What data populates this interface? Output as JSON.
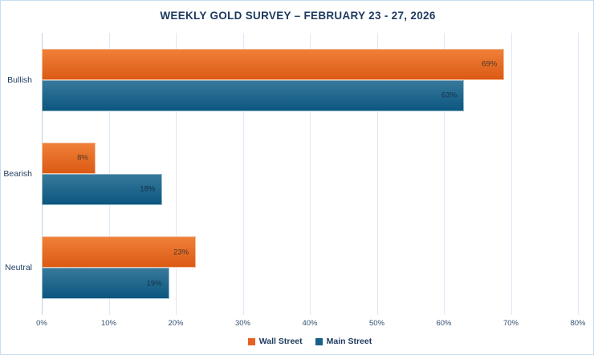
{
  "title": "WEEKLY GOLD SURVEY – FEBRUARY 23 - 27, 2026",
  "chart_data": {
    "type": "bar",
    "orientation": "horizontal",
    "title": "WEEKLY GOLD SURVEY – FEBRUARY 23 - 27, 2026",
    "categories": [
      "Bullish",
      "Bearish",
      "Neutral"
    ],
    "series": [
      {
        "name": "Wall Street",
        "values": [
          69,
          8,
          23
        ],
        "data_labels": [
          "69%",
          "8%",
          "23%"
        ],
        "color": "#E76222",
        "gradient_top": "#F08038",
        "gradient_bottom": "#DB5A14",
        "label_color": "#4A382A"
      },
      {
        "name": "Main Street",
        "values": [
          63,
          18,
          19
        ],
        "data_labels": [
          "63%",
          "18%",
          "19%"
        ],
        "color": "#17608C",
        "gradient_top": "#37799B",
        "gradient_bottom": "#0C567F",
        "label_color": "#132F49"
      }
    ],
    "x_ticks": [
      "0%",
      "10%",
      "20%",
      "30%",
      "40%",
      "50%",
      "60%",
      "70%",
      "80%"
    ],
    "xlim": [
      0,
      80
    ],
    "grid": true,
    "legend_position": "bottom"
  },
  "colors": {
    "background": "#FFFFFF",
    "frame_border": "#C9DDF2",
    "title_text": "#1E3A5F",
    "category_text": "#1E3A5F",
    "tick_text": "#33506E",
    "legend_text": "#1E3A5F",
    "gridline": "#DCE9F7",
    "axis_line": "#BBD2E8"
  }
}
